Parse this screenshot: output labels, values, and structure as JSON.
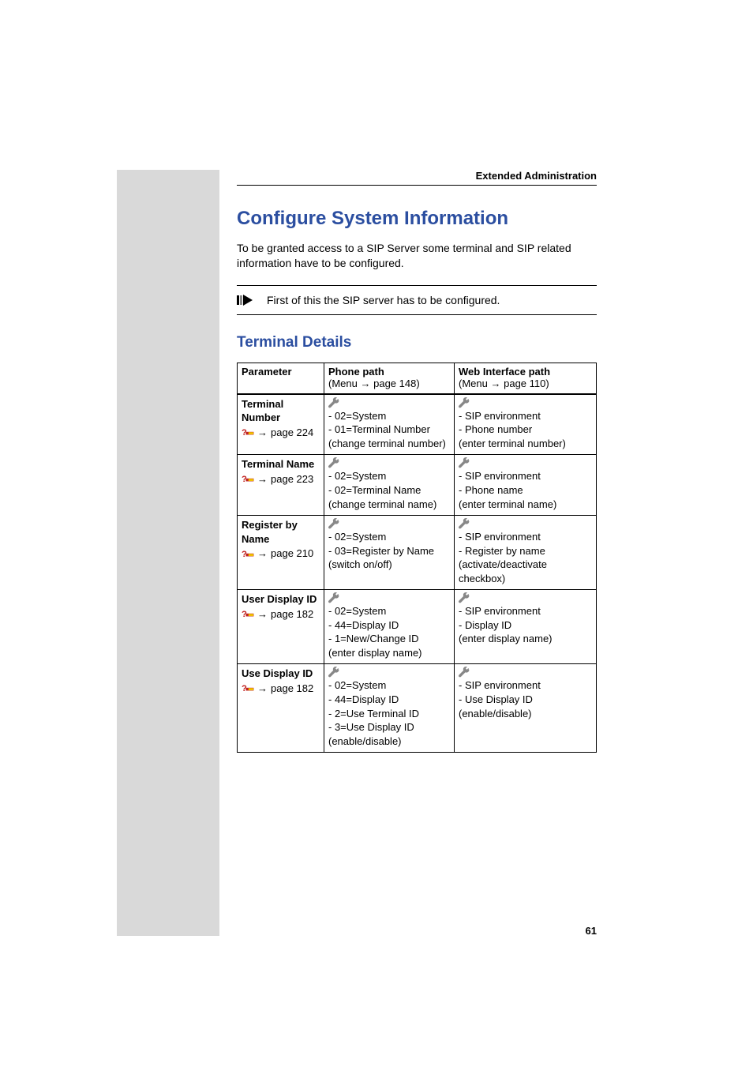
{
  "header": {
    "label": "Extended Administration"
  },
  "title": "Configure System Information",
  "intro": "To be granted access to a SIP Server some terminal and SIP related information have to be configured.",
  "step": {
    "text": "First of this the SIP server has to be configured."
  },
  "section": {
    "title": "Terminal Details"
  },
  "table": {
    "headers": {
      "parameter": "Parameter",
      "phone": "Phone path",
      "phone_sub_prefix": "(Menu",
      "phone_sub_page": "page 148)",
      "web": "Web Interface path",
      "web_sub_prefix": "(Menu",
      "web_sub_page": "page 110)"
    },
    "rows": [
      {
        "param": "Terminal Number",
        "page_ref": "page 224",
        "phone": [
          "- 02=System",
          "- 01=Terminal Number",
          "(change terminal number)"
        ],
        "web": [
          "- SIP environment",
          "- Phone number",
          "(enter terminal number)"
        ]
      },
      {
        "param": "Terminal Name",
        "page_ref": "page 223",
        "phone": [
          "- 02=System",
          "- 02=Terminal Name",
          "(change terminal name)"
        ],
        "web": [
          "- SIP environment",
          "- Phone name",
          "(enter terminal name)"
        ]
      },
      {
        "param": "Register by Name",
        "page_ref": "page 210",
        "phone": [
          "- 02=System",
          "- 03=Register by Name",
          "(switch on/off)"
        ],
        "web": [
          "- SIP environment",
          "- Register by name",
          "(activate/deactivate checkbox)"
        ]
      },
      {
        "param": "User Display ID",
        "page_ref": "page 182",
        "phone": [
          "- 02=System",
          "- 44=Display ID",
          "-  1=New/Change ID",
          "(enter display name)"
        ],
        "web": [
          "- SIP environment",
          "- Display ID",
          "(enter display name)"
        ]
      },
      {
        "param": "Use Display ID",
        "page_ref": "page 182",
        "phone": [
          "- 02=System",
          "- 44=Display ID",
          "-  2=Use Terminal ID",
          "- 3=Use Display ID",
          "(enable/disable)"
        ],
        "web": [
          "- SIP environment",
          "- Use Display ID",
          "(enable/disable)"
        ]
      }
    ]
  },
  "page_number": "61",
  "colors": {
    "title": "#2b4ea0",
    "sidebar": "#d9d9d9",
    "wrench": "#888888",
    "qm_red": "#c02020",
    "qm_yellow": "#f0c000",
    "step_gray": "#888888"
  }
}
